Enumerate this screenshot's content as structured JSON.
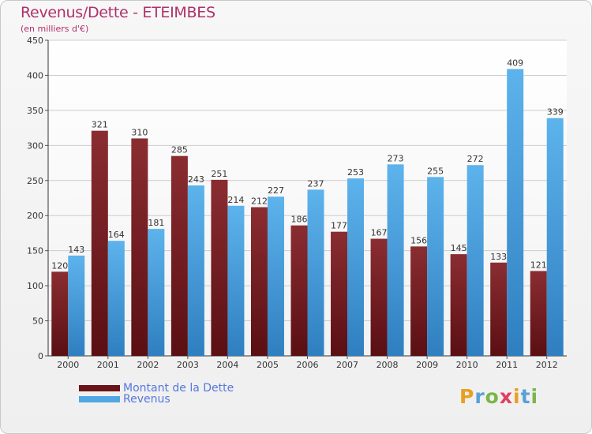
{
  "title": "Revenus/Dette - ETEIMBES",
  "subtitle": "(en milliers d'€)",
  "logo_text": "Proxiti",
  "colors": {
    "title": "#b0306a",
    "debt": "#7a1f24",
    "revenue": "#4fa7e3",
    "grid": "#cccccc",
    "axis": "#333333"
  },
  "chart_data": {
    "type": "bar",
    "title": "Revenus/Dette - ETEIMBES",
    "subtitle": "(en milliers d'€)",
    "categories": [
      "2000",
      "2001",
      "2002",
      "2003",
      "2004",
      "2005",
      "2006",
      "2007",
      "2008",
      "2009",
      "2010",
      "2011",
      "2012"
    ],
    "series": [
      {
        "name": "Montant de la Dette",
        "color": "#7a1f24",
        "values": [
          120,
          321,
          310,
          285,
          251,
          212,
          186,
          177,
          167,
          156,
          145,
          133,
          121
        ]
      },
      {
        "name": "Revenus",
        "color": "#4fa7e3",
        "values": [
          143,
          164,
          181,
          243,
          214,
          227,
          237,
          253,
          273,
          255,
          272,
          409,
          339
        ]
      }
    ],
    "ylim": [
      0,
      450
    ],
    "yticks": [
      0,
      50,
      100,
      150,
      200,
      250,
      300,
      350,
      400,
      450
    ],
    "grid": true,
    "legend_position": "bottom-left"
  }
}
